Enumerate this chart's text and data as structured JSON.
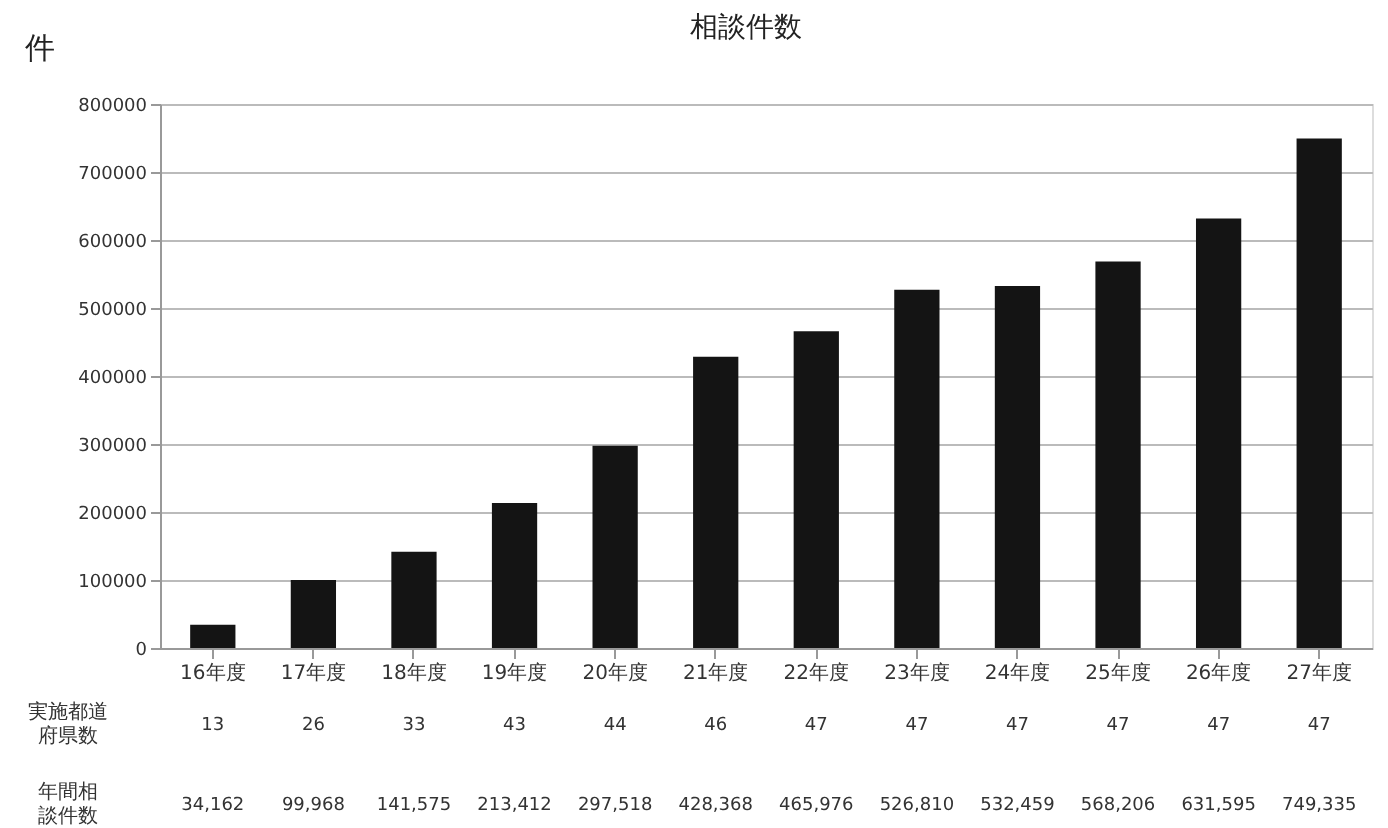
{
  "chart_data": {
    "type": "bar",
    "title": "相談件数",
    "ylabel": "件",
    "categories": [
      "16年度",
      "17年度",
      "18年度",
      "19年度",
      "20年度",
      "21年度",
      "22年度",
      "23年度",
      "24年度",
      "25年度",
      "26年度",
      "27年度"
    ],
    "values": [
      34162,
      99968,
      141575,
      213412,
      297518,
      428368,
      465976,
      526810,
      532459,
      568206,
      631595,
      749335
    ],
    "value_labels": [
      "34,162",
      "99,968",
      "141,575",
      "213,412",
      "297,518",
      "428,368",
      "465,976",
      "526,810",
      "532,459",
      "568,206",
      "631,595",
      "749,335"
    ],
    "color": "#141414",
    "ylim": [
      0,
      800000
    ],
    "yticks": [
      0,
      100000,
      200000,
      300000,
      400000,
      500000,
      600000,
      700000,
      800000
    ],
    "grid": "y",
    "annotations": [
      "実施都道府県数",
      "年間相談件数",
      "13",
      "26",
      "33",
      "43",
      "44",
      "46",
      "47",
      "47",
      "47",
      "47",
      "47",
      "47"
    ]
  }
}
